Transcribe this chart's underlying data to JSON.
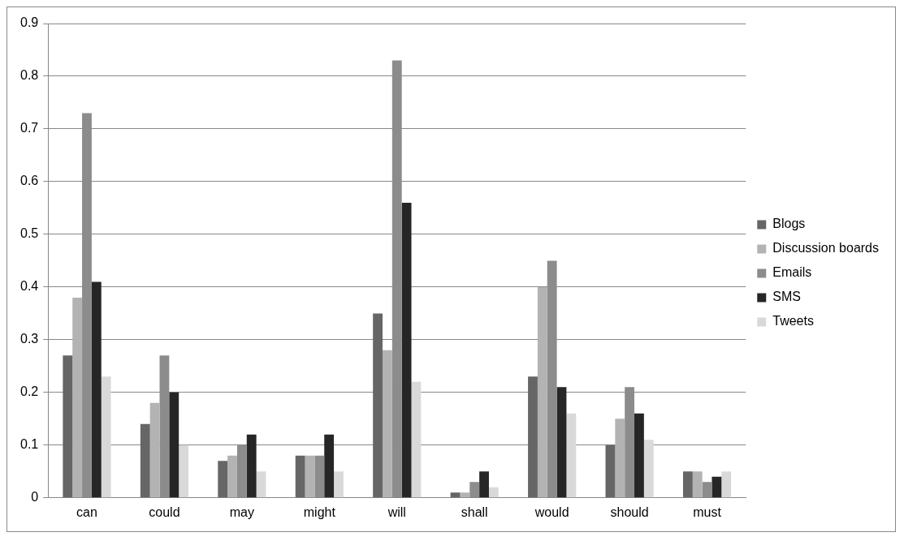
{
  "chart_data": {
    "type": "bar",
    "categories": [
      "can",
      "could",
      "may",
      "might",
      "will",
      "shall",
      "would",
      "should",
      "must"
    ],
    "series": [
      {
        "name": "Blogs",
        "color": "#666666",
        "values": [
          0.27,
          0.14,
          0.07,
          0.08,
          0.35,
          0.01,
          0.23,
          0.1,
          0.05
        ]
      },
      {
        "name": "Discussion boards",
        "color": "#b3b3b3",
        "values": [
          0.38,
          0.18,
          0.08,
          0.08,
          0.28,
          0.01,
          0.4,
          0.15,
          0.05
        ]
      },
      {
        "name": "Emails",
        "color": "#8c8c8c",
        "values": [
          0.73,
          0.27,
          0.1,
          0.08,
          0.83,
          0.03,
          0.45,
          0.21,
          0.03
        ]
      },
      {
        "name": "SMS",
        "color": "#262626",
        "values": [
          0.41,
          0.2,
          0.12,
          0.12,
          0.56,
          0.05,
          0.21,
          0.16,
          0.04
        ]
      },
      {
        "name": "Tweets",
        "color": "#d9d9d9",
        "values": [
          0.23,
          0.1,
          0.05,
          0.05,
          0.22,
          0.02,
          0.16,
          0.11,
          0.05
        ]
      }
    ],
    "ylim": [
      0,
      0.9
    ],
    "yticks": [
      0,
      0.1,
      0.2,
      0.3,
      0.4,
      0.5,
      0.6,
      0.7,
      0.8,
      0.9
    ],
    "grid": "y",
    "legend": "right"
  }
}
